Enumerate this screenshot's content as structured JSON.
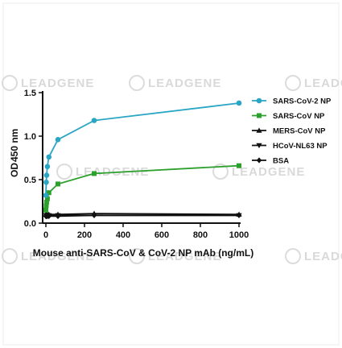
{
  "watermark": {
    "text": "LEADGENE",
    "color": "#d6d6d6"
  },
  "chart_data": {
    "type": "line",
    "xlabel": "Mouse anti-SARS-CoV & CoV-2 NP mAb (ng/mL)",
    "ylabel_main": "OD",
    "ylabel_sub": "450 nm",
    "xlim": [
      0,
      1000
    ],
    "ylim": [
      0,
      1.5
    ],
    "x_ticks": [
      "0",
      "200",
      "400",
      "600",
      "800",
      "1000"
    ],
    "y_ticks": [
      "0.0",
      "0.5",
      "1.0",
      "1.5"
    ],
    "grid": false,
    "legend_position": "right",
    "x": [
      0,
      1.95,
      3.9,
      7.8,
      15.6,
      62.5,
      250,
      1000
    ],
    "series": [
      {
        "name": "SARS-CoV-2 NP",
        "color": "#2aa6c4",
        "marker": "circle",
        "values": [
          0.32,
          0.47,
          0.55,
          0.65,
          0.76,
          0.96,
          1.18,
          1.38
        ]
      },
      {
        "name": "SARS-CoV NP",
        "color": "#2ca02c",
        "marker": "square",
        "values": [
          0.15,
          0.2,
          0.24,
          0.28,
          0.35,
          0.45,
          0.57,
          0.66
        ]
      },
      {
        "name": "MERS-CoV NP",
        "color": "#111111",
        "marker": "triangle-up",
        "values": [
          0.1,
          0.1,
          0.1,
          0.1,
          0.1,
          0.1,
          0.11,
          0.1
        ]
      },
      {
        "name": "HCoV-NL63 NP",
        "color": "#111111",
        "marker": "triangle-down",
        "values": [
          0.09,
          0.09,
          0.09,
          0.09,
          0.09,
          0.09,
          0.09,
          0.09
        ]
      },
      {
        "name": "BSA",
        "color": "#111111",
        "marker": "diamond",
        "values": [
          0.08,
          0.08,
          0.08,
          0.08,
          0.08,
          0.08,
          0.09,
          0.09
        ]
      }
    ]
  }
}
